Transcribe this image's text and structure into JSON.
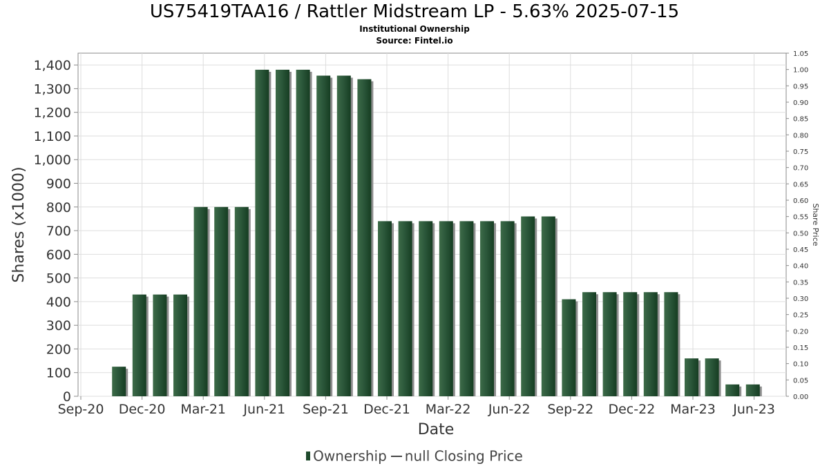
{
  "chart_data": {
    "type": "bar",
    "title": "US75419TAA16 / Rattler Midstream LP - 5.63% 2025-07-15",
    "subtitle": "Institutional Ownership",
    "source": "Source: Fintel.io",
    "xlabel": "Date",
    "ylabel": "Shares (x1000)",
    "y2label": "Share Price",
    "ylim": [
      0,
      1450
    ],
    "y2lim": [
      0,
      1.05
    ],
    "grid": true,
    "legend_position": "bottom-center",
    "x_tick_labels": [
      "Sep-20",
      "Dec-20",
      "Mar-21",
      "Jun-21",
      "Sep-21",
      "Dec-21",
      "Mar-22",
      "Jun-22",
      "Sep-22",
      "Dec-22",
      "Mar-23",
      "Jun-23"
    ],
    "y_tick_labels": [
      "0",
      "100",
      "200",
      "300",
      "400",
      "500",
      "600",
      "700",
      "800",
      "900",
      "1,000",
      "1,100",
      "1,200",
      "1,300",
      "1,400"
    ],
    "y2_tick_labels": [
      "0.00",
      "0.05",
      "0.10",
      "0.15",
      "0.20",
      "0.25",
      "0.30",
      "0.35",
      "0.40",
      "0.45",
      "0.50",
      "0.55",
      "0.60",
      "0.65",
      "0.70",
      "0.75",
      "0.80",
      "0.85",
      "0.90",
      "0.95",
      "1.00",
      "1.05"
    ],
    "series": [
      {
        "name": "Ownership",
        "values": [
          125,
          430,
          430,
          430,
          800,
          800,
          800,
          1380,
          1380,
          1380,
          1355,
          1355,
          1340,
          740,
          740,
          740,
          740,
          740,
          740,
          740,
          760,
          760,
          410,
          440,
          440,
          440,
          440,
          440,
          160,
          160,
          50,
          50
        ]
      },
      {
        "name": "null Closing Price",
        "values": []
      }
    ],
    "colors": {
      "bar": "#1f4a2c",
      "bar_shadow": "#8f8f8f",
      "grid": "#dddddd",
      "axis": "#888888",
      "line": "#444444"
    }
  },
  "legend": {
    "ownership_label": "Ownership",
    "price_label": "null Closing Price"
  }
}
